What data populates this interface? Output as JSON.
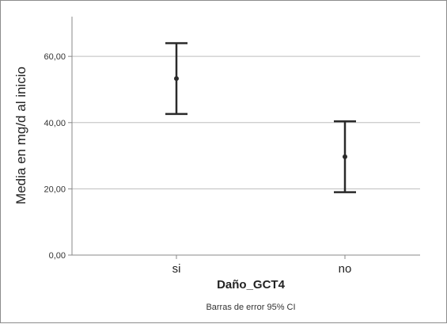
{
  "chart_data": {
    "type": "errorbar",
    "categories": [
      "si",
      "no"
    ],
    "series": [
      {
        "means": [
          53.3,
          29.7
        ],
        "lower": [
          42.6,
          19.0
        ],
        "upper": [
          64.0,
          40.4
        ]
      }
    ],
    "xlabel": "Daño_GCT4",
    "ylabel": "Media en mg/d al inicio",
    "footnote": "Barras de error 95% CI",
    "yticks": [
      "0,00",
      "20,00",
      "40,00",
      "60,00"
    ],
    "ytick_values": [
      0,
      20,
      40,
      60
    ],
    "ylim": [
      0,
      72
    ],
    "grid": true,
    "colors": {
      "bars": "#2a2a2a",
      "grid": "#bdbdbd",
      "axis": "#888888"
    }
  }
}
